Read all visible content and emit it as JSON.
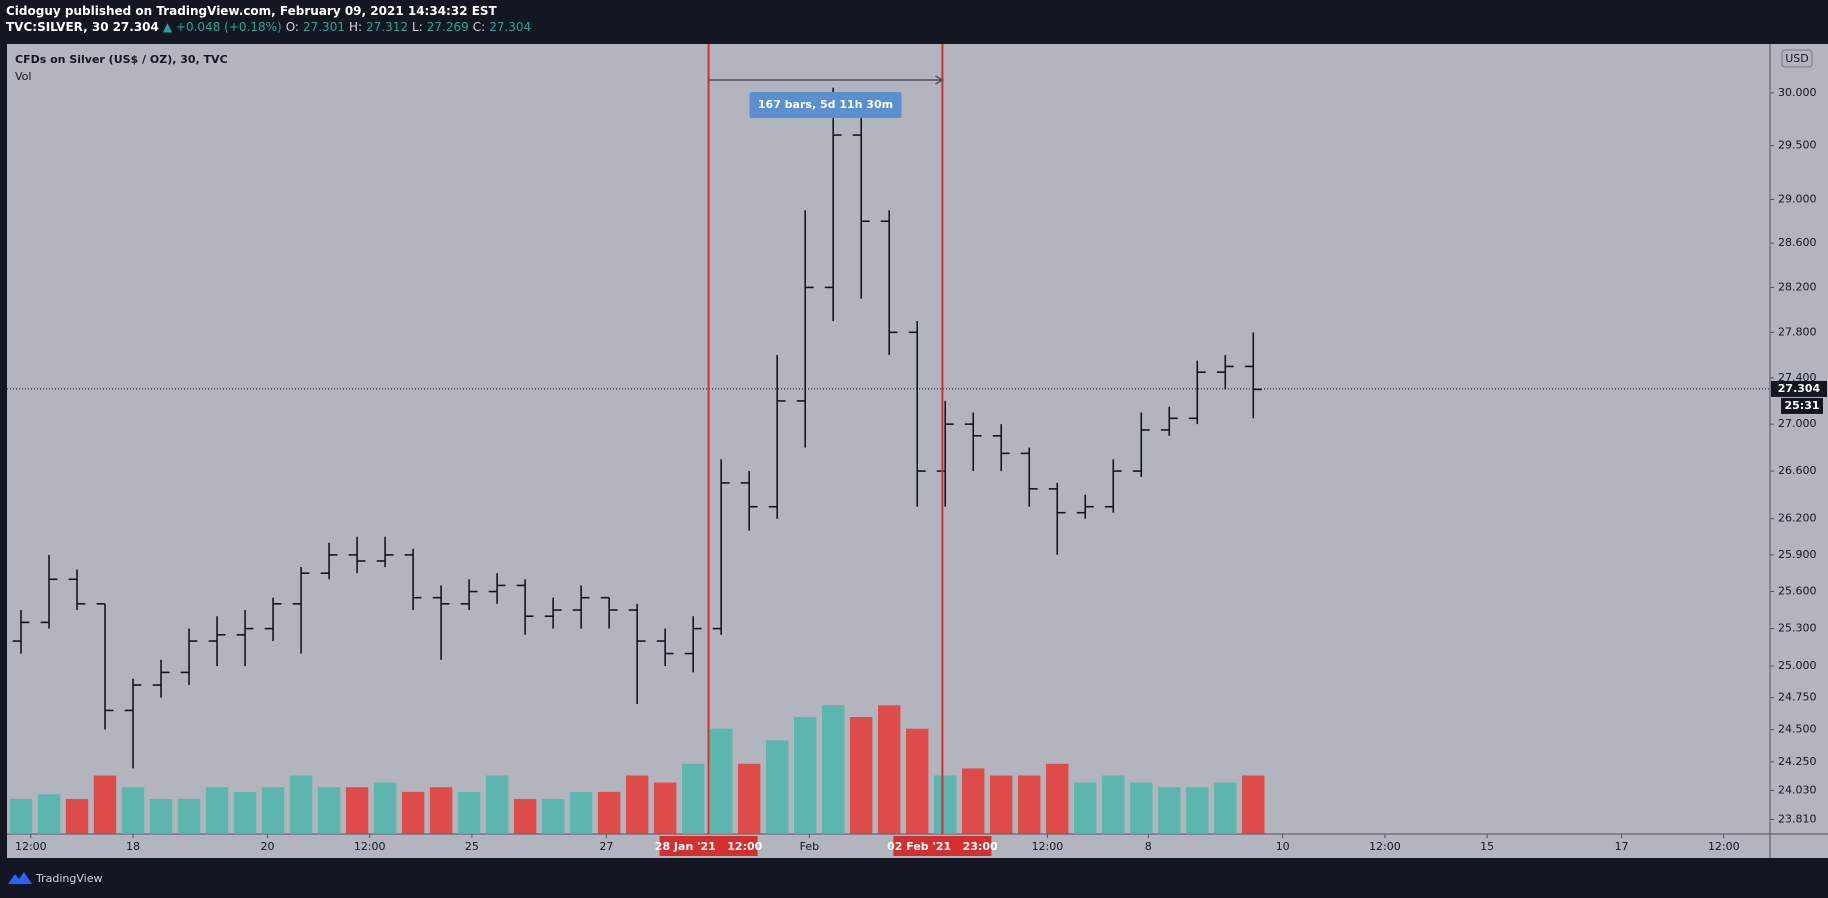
{
  "header": {
    "publisher": "Cidoguy published on TradingView.com, February 09, 2021 14:34:32 EST",
    "symbol": "TVC:SILVER, 30",
    "price": 27.304,
    "change": "▲ +0.048 (+0.18%)",
    "ohlc": [
      {
        "label": "O:",
        "value": 27.301
      },
      {
        "label": "H:",
        "value": 27.312
      },
      {
        "label": "L:",
        "value": 27.269
      },
      {
        "label": "C:",
        "value": 27.304
      }
    ]
  },
  "chart_data": {
    "type": "ohlc",
    "title": "CFDs on Silver (US$ / OZ), 30, TVC",
    "volume_title": "Vol",
    "currency": "USD",
    "x": [
      10,
      30,
      50,
      70,
      90,
      110,
      130,
      150,
      170,
      190,
      210,
      230,
      250,
      270,
      290,
      310,
      330,
      350,
      370,
      390,
      410,
      430,
      450,
      470,
      490,
      510,
      530,
      550,
      570,
      590,
      610,
      630,
      650,
      670,
      690,
      710,
      730,
      750,
      770,
      790,
      810,
      830,
      850,
      870,
      890
    ],
    "open": [
      25.2,
      25.35,
      25.7,
      25.5,
      24.65,
      24.85,
      24.95,
      25.2,
      25.25,
      25.3,
      25.5,
      25.75,
      25.9,
      25.85,
      25.9,
      25.55,
      25.5,
      25.6,
      25.65,
      25.4,
      25.45,
      25.55,
      25.45,
      25.2,
      25.1,
      25.3,
      26.5,
      26.3,
      27.2,
      28.2,
      29.6,
      28.8,
      27.8,
      26.6,
      27.0,
      26.9,
      26.75,
      26.45,
      26.25,
      26.3,
      26.6,
      26.95,
      27.05,
      27.45,
      27.5
    ],
    "high": [
      25.45,
      25.9,
      25.78,
      25.5,
      24.9,
      25.05,
      25.3,
      25.4,
      25.45,
      25.55,
      25.8,
      26.0,
      26.05,
      26.05,
      25.95,
      25.65,
      25.7,
      25.75,
      25.7,
      25.55,
      25.65,
      25.55,
      25.5,
      25.3,
      25.4,
      26.7,
      26.6,
      27.6,
      28.9,
      30.05,
      29.8,
      28.9,
      27.9,
      27.2,
      27.1,
      27.0,
      26.8,
      26.5,
      26.4,
      26.7,
      27.1,
      27.15,
      27.55,
      27.6,
      27.8
    ],
    "low": [
      25.1,
      25.3,
      25.45,
      24.5,
      24.2,
      24.75,
      24.85,
      25.0,
      25.0,
      25.2,
      25.1,
      25.7,
      25.75,
      25.8,
      25.45,
      25.05,
      25.45,
      25.5,
      25.25,
      25.3,
      25.3,
      25.3,
      24.7,
      25.0,
      24.95,
      25.25,
      26.1,
      26.2,
      26.8,
      27.9,
      28.1,
      27.6,
      26.3,
      26.3,
      26.6,
      26.6,
      26.3,
      25.9,
      26.2,
      26.25,
      26.55,
      26.9,
      27.0,
      27.3,
      27.05
    ],
    "close": [
      25.35,
      25.7,
      25.5,
      24.65,
      24.85,
      24.95,
      25.2,
      25.25,
      25.3,
      25.5,
      25.75,
      25.9,
      25.85,
      25.9,
      25.55,
      25.5,
      25.6,
      25.65,
      25.4,
      25.45,
      25.55,
      25.45,
      25.2,
      25.1,
      25.3,
      26.5,
      26.3,
      27.2,
      28.2,
      29.6,
      28.8,
      27.8,
      26.6,
      27.0,
      26.9,
      26.75,
      26.45,
      26.25,
      26.3,
      26.6,
      26.95,
      27.05,
      27.45,
      27.5,
      27.3
    ],
    "volume": [
      15,
      17,
      15,
      25,
      20,
      15,
      15,
      20,
      18,
      20,
      25,
      20,
      20,
      22,
      18,
      20,
      18,
      25,
      15,
      15,
      18,
      18,
      25,
      22,
      30,
      45,
      30,
      40,
      50,
      55,
      50,
      55,
      45,
      25,
      28,
      25,
      25,
      30,
      22,
      25,
      22,
      20,
      20,
      22,
      25
    ],
    "volume_lim": [
      0,
      100
    ],
    "colors": {
      "bar": "#131722",
      "up": "#4db6ac",
      "down": "#e53935",
      "marker": "#d32f2f",
      "measure": "#5b8fd0"
    },
    "log": true,
    "ylim": [
      23.7,
      30.47
    ],
    "yticks": [
      {
        "value": 30,
        "label": "30.000"
      },
      {
        "value": 29.5,
        "label": "29.500"
      },
      {
        "value": 29,
        "label": "29.000"
      },
      {
        "value": 28.6,
        "label": "28.600"
      },
      {
        "value": 28.2,
        "label": "28.200"
      },
      {
        "value": 27.8,
        "label": "27.800"
      },
      {
        "value": 27.4,
        "label": "27.400"
      },
      {
        "value": 27,
        "label": "27.000"
      },
      {
        "value": 26.6,
        "label": "26.600"
      },
      {
        "value": 26.2,
        "label": "26.200"
      },
      {
        "value": 25.9,
        "label": "25.900"
      },
      {
        "value": 25.6,
        "label": "25.600"
      },
      {
        "value": 25.3,
        "label": "25.300"
      },
      {
        "value": 25,
        "label": "25.000"
      },
      {
        "value": 24.75,
        "label": "24.750"
      },
      {
        "value": 24.5,
        "label": "24.500"
      },
      {
        "value": 24.25,
        "label": "24.250"
      },
      {
        "value": 24.03,
        "label": "24.030"
      },
      {
        "value": 23.81,
        "label": "23.810"
      }
    ],
    "xlim": [
      0,
      1259
    ],
    "xticks": [
      {
        "value": 17,
        "label": "12:00"
      },
      {
        "value": 90,
        "label": "18"
      },
      {
        "value": 186,
        "label": "20"
      },
      {
        "value": 259,
        "label": "12:00"
      },
      {
        "value": 332,
        "label": "25"
      },
      {
        "value": 428,
        "label": "27"
      },
      {
        "value": 573,
        "label": "Feb"
      },
      {
        "value": 743,
        "label": "12:00"
      },
      {
        "value": 815,
        "label": "8"
      },
      {
        "value": 911,
        "label": "10"
      },
      {
        "value": 984,
        "label": "12:00"
      },
      {
        "value": 1057,
        "label": "15"
      },
      {
        "value": 1153,
        "label": "17"
      },
      {
        "value": 1226,
        "label": "12:00"
      }
    ],
    "last_price": 27.304,
    "countdown": "25:31",
    "markers": [
      {
        "x": 501,
        "label": "28 Jan '21   12:00"
      },
      {
        "x": 668,
        "label": "02 Feb '21   23:00"
      }
    ],
    "measure": {
      "from": 501,
      "to": 668,
      "label": "167 bars, 5d 11h 30m"
    }
  },
  "footer": {
    "brand": "TradingView"
  }
}
